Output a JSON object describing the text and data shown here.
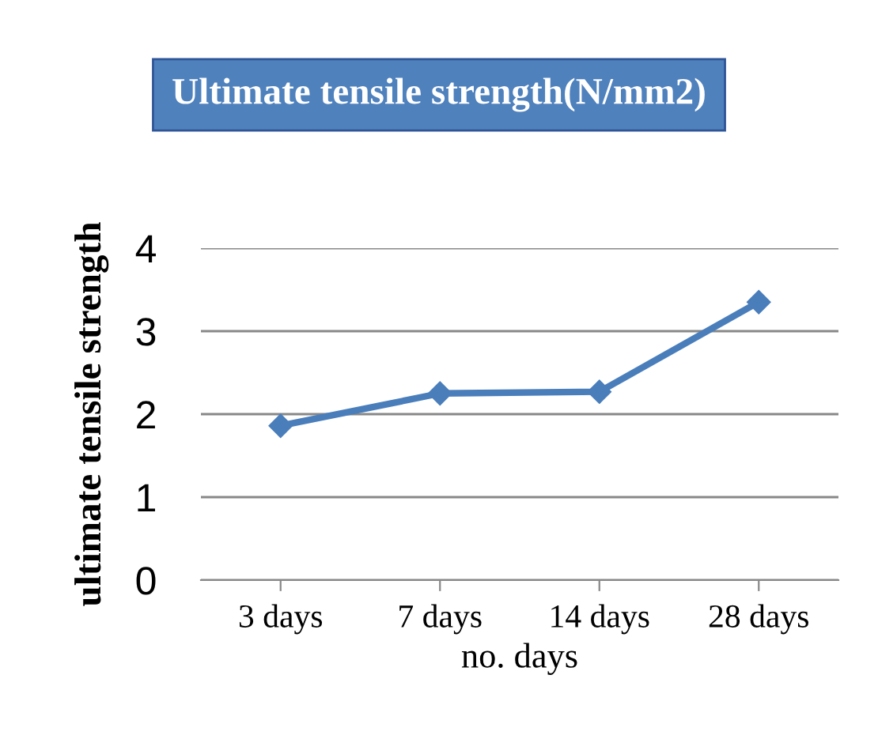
{
  "chart_data": {
    "type": "line",
    "title": "Ultimate tensile strength(N/mm2)",
    "xlabel": "no. days",
    "ylabel": "ultimate tensile strength",
    "categories": [
      "3 days",
      "7 days",
      "14 days",
      "28 days"
    ],
    "series": [
      {
        "color": "#4a7ebb",
        "values": [
          1.86,
          2.25,
          2.27,
          3.35
        ]
      }
    ],
    "ylim": [
      0,
      4
    ],
    "yticks": [
      0,
      1,
      2,
      3,
      4
    ],
    "grid": "y",
    "marker": "diamond",
    "line_style": "solid"
  }
}
